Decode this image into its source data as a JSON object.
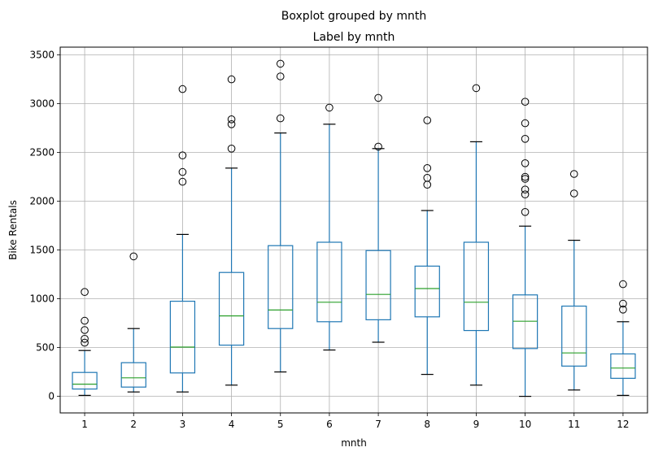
{
  "chart_data": {
    "type": "box",
    "suptitle": "Boxplot grouped by mnth",
    "title": "Label by mnth",
    "xlabel": "mnth",
    "ylabel": "Bike Rentals",
    "ylim": [
      -170,
      3580
    ],
    "yticks": [
      0,
      500,
      1000,
      1500,
      2000,
      2500,
      3000,
      3500
    ],
    "grid": true,
    "colors": {
      "box": "#1f77b4",
      "median": "#2ca02c",
      "whisker_cap": "#000000",
      "flier": "#000000",
      "grid": "#b0b0b0"
    },
    "categories": [
      "1",
      "2",
      "3",
      "4",
      "5",
      "6",
      "7",
      "8",
      "9",
      "10",
      "11",
      "12"
    ],
    "boxes": [
      {
        "whislo": 10,
        "q1": 75,
        "med": 125,
        "q3": 245,
        "whishi": 470,
        "fliers": [
          550,
          590,
          680,
          775,
          1070
        ]
      },
      {
        "whislo": 45,
        "q1": 95,
        "med": 190,
        "q3": 345,
        "whishi": 695,
        "fliers": [
          1435
        ]
      },
      {
        "whislo": 45,
        "q1": 240,
        "med": 505,
        "q3": 975,
        "whishi": 1660,
        "fliers": [
          2200,
          2300,
          2470,
          3150
        ]
      },
      {
        "whislo": 115,
        "q1": 525,
        "med": 825,
        "q3": 1270,
        "whishi": 2340,
        "fliers": [
          2540,
          2790,
          2840,
          3250
        ]
      },
      {
        "whislo": 250,
        "q1": 695,
        "med": 885,
        "q3": 1545,
        "whishi": 2700,
        "fliers": [
          2850,
          3280,
          3410
        ]
      },
      {
        "whislo": 475,
        "q1": 765,
        "med": 965,
        "q3": 1580,
        "whishi": 2790,
        "fliers": [
          2960
        ]
      },
      {
        "whislo": 555,
        "q1": 785,
        "med": 1045,
        "q3": 1495,
        "whishi": 2540,
        "fliers": [
          2560,
          3060
        ]
      },
      {
        "whislo": 225,
        "q1": 815,
        "med": 1105,
        "q3": 1335,
        "whishi": 1905,
        "fliers": [
          2170,
          2240,
          2340,
          2830
        ]
      },
      {
        "whislo": 115,
        "q1": 675,
        "med": 965,
        "q3": 1580,
        "whishi": 2610,
        "fliers": [
          3160
        ]
      },
      {
        "whislo": 0,
        "q1": 490,
        "med": 770,
        "q3": 1040,
        "whishi": 1745,
        "fliers": [
          1890,
          2070,
          2120,
          2230,
          2250,
          2390,
          2640,
          2800,
          3020
        ]
      },
      {
        "whislo": 65,
        "q1": 310,
        "med": 445,
        "q3": 925,
        "whishi": 1600,
        "fliers": [
          2080,
          2280
        ]
      },
      {
        "whislo": 10,
        "q1": 185,
        "med": 290,
        "q3": 435,
        "whishi": 765,
        "fliers": [
          890,
          950,
          1150
        ]
      }
    ]
  }
}
